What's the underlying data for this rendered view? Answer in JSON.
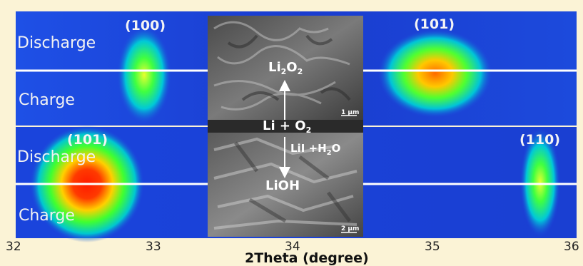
{
  "panels": {
    "top": {
      "discharge": "Discharge",
      "charge": "Charge",
      "peak_left": "(100)",
      "peak_right": "(101)"
    },
    "bottom": {
      "discharge": "Discharge",
      "charge": "Charge",
      "peak_left": "(101)",
      "peak_right": "(110)"
    }
  },
  "sem": {
    "top_product": "Li2O2",
    "reactants": "Li + O2",
    "additive": "LiI + H2O",
    "bottom_product": "LiOH",
    "scale_top": "1 μm",
    "scale_bottom": "2 μm"
  },
  "axis": {
    "title": "2Theta (degree)",
    "ticks": [
      "32",
      "33",
      "34",
      "35",
      "36"
    ]
  },
  "colors": {
    "background": "#fbf3d6",
    "heatmap_base": "#1a3fd8",
    "divider": "#ffffff"
  }
}
